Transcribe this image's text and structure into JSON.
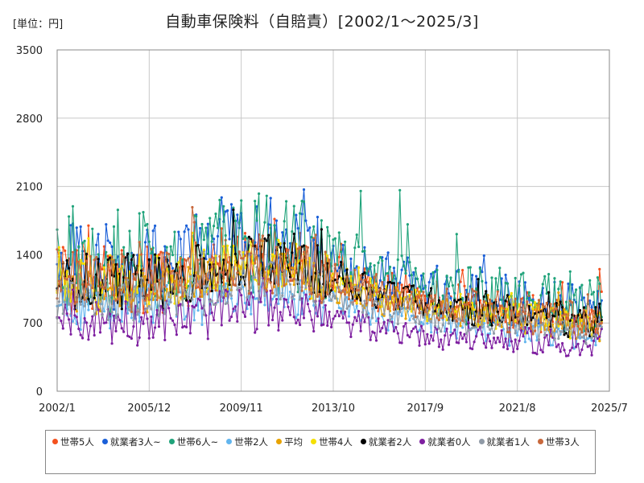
{
  "unit_label": "[単位：円]",
  "chart_data": {
    "type": "line",
    "title": "自動車保険料（自賠責）[2002/1～2025/3]",
    "xlabel": "",
    "ylabel": "",
    "x_range": [
      "2002/1",
      "2025/3"
    ],
    "x_ticks": [
      "2002/1",
      "2005/12",
      "2009/11",
      "2013/10",
      "2017/9",
      "2021/8",
      "2025/7"
    ],
    "xlim": [
      "2002/1",
      "2025/7"
    ],
    "ylim": [
      0,
      3500
    ],
    "y_ticks": [
      0,
      700,
      1400,
      2100,
      2800,
      3500
    ],
    "grid": "on",
    "legend_position": "bottom",
    "series": [
      {
        "name": "世帯5人",
        "color": "#f4511e",
        "level": 1150,
        "amp": 330,
        "end": 1020
      },
      {
        "name": "就業者3人~",
        "color": "#1a5fd8",
        "level": 1300,
        "amp": 420,
        "end": 930
      },
      {
        "name": "世帯6人~",
        "color": "#1fa37a",
        "level": 1330,
        "amp": 520,
        "end": 760
      },
      {
        "name": "世帯2人",
        "color": "#62b5ee",
        "level": 870,
        "amp": 230,
        "end": 640
      },
      {
        "name": "平均",
        "color": "#e8a300",
        "level": 1040,
        "amp": 210,
        "end": 700
      },
      {
        "name": "世帯4人",
        "color": "#f5e000",
        "level": 1090,
        "amp": 250,
        "end": 720
      },
      {
        "name": "就業者2人",
        "color": "#000000",
        "level": 1130,
        "amp": 270,
        "end": 730
      },
      {
        "name": "就業者0人",
        "color": "#7e1fa0",
        "level": 720,
        "amp": 220,
        "end": 640
      },
      {
        "name": "就業者1人",
        "color": "#909aa6",
        "level": 960,
        "amp": 220,
        "end": 660
      },
      {
        "name": "世帯3人",
        "color": "#c8683c",
        "level": 1110,
        "amp": 280,
        "end": 700
      }
    ]
  }
}
